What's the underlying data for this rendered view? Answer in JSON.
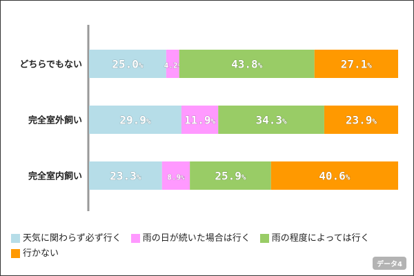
{
  "chart_data": {
    "type": "bar",
    "orientation": "horizontal-stacked-100",
    "categories": [
      "どちらでもない",
      "完全室外飼い",
      "完全室内飼い"
    ],
    "series": [
      {
        "name": "天気に関わらず必ず行く",
        "color": "#b6dde8",
        "values": [
          25.0,
          29.9,
          23.3
        ]
      },
      {
        "name": "雨の日が続いた場合は行く",
        "color": "#ff99ff",
        "values": [
          4.2,
          11.9,
          8.9
        ]
      },
      {
        "name": "雨の程度によっては行く",
        "color": "#99cc66",
        "values": [
          43.8,
          34.3,
          25.9
        ]
      },
      {
        "name": "行かない",
        "color": "#ff9900",
        "values": [
          27.1,
          23.9,
          40.6
        ]
      }
    ],
    "unit": "%",
    "legend_position": "bottom",
    "grid": false
  },
  "badge": "データ4"
}
